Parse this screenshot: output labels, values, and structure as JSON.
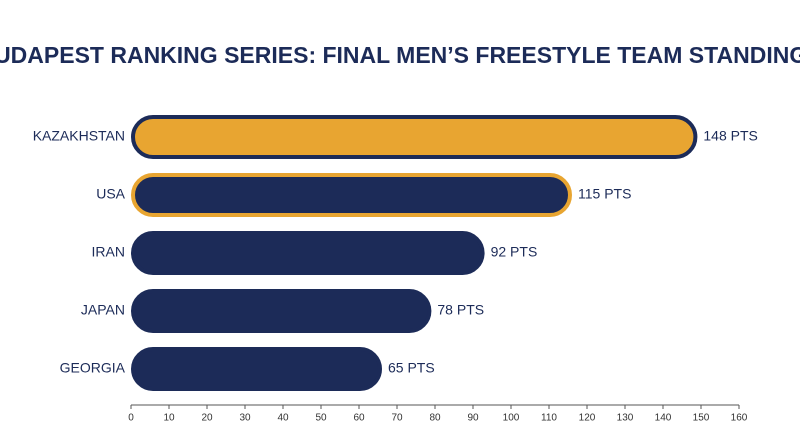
{
  "chart_data": {
    "type": "hbar",
    "title": "BUDAPEST RANKING SERIES: FINAL MEN’S FREESTYLE TEAM STANDINGS",
    "categories": [
      "KAZAKHSTAN",
      "USA",
      "IRAN",
      "JAPAN",
      "GEORGIA"
    ],
    "values": [
      148,
      115,
      92,
      78,
      65
    ],
    "value_labels": [
      "148 PTS",
      "115 PTS",
      "92 PTS",
      "78 PTS",
      "65 PTS"
    ],
    "colors": [
      "#e8a531",
      "#1c2b58",
      "#1c2b58",
      "#1c2b58",
      "#1c2b58"
    ],
    "edge_colors": [
      "#1c2b58",
      "#e8a531",
      "#1c2b58",
      "#1c2b58",
      "#1c2b58"
    ],
    "xlim": [
      0,
      160
    ],
    "xticks": [
      0,
      10,
      20,
      30,
      40,
      50,
      60,
      70,
      80,
      90,
      100,
      110,
      120,
      130,
      140,
      150,
      160
    ]
  }
}
